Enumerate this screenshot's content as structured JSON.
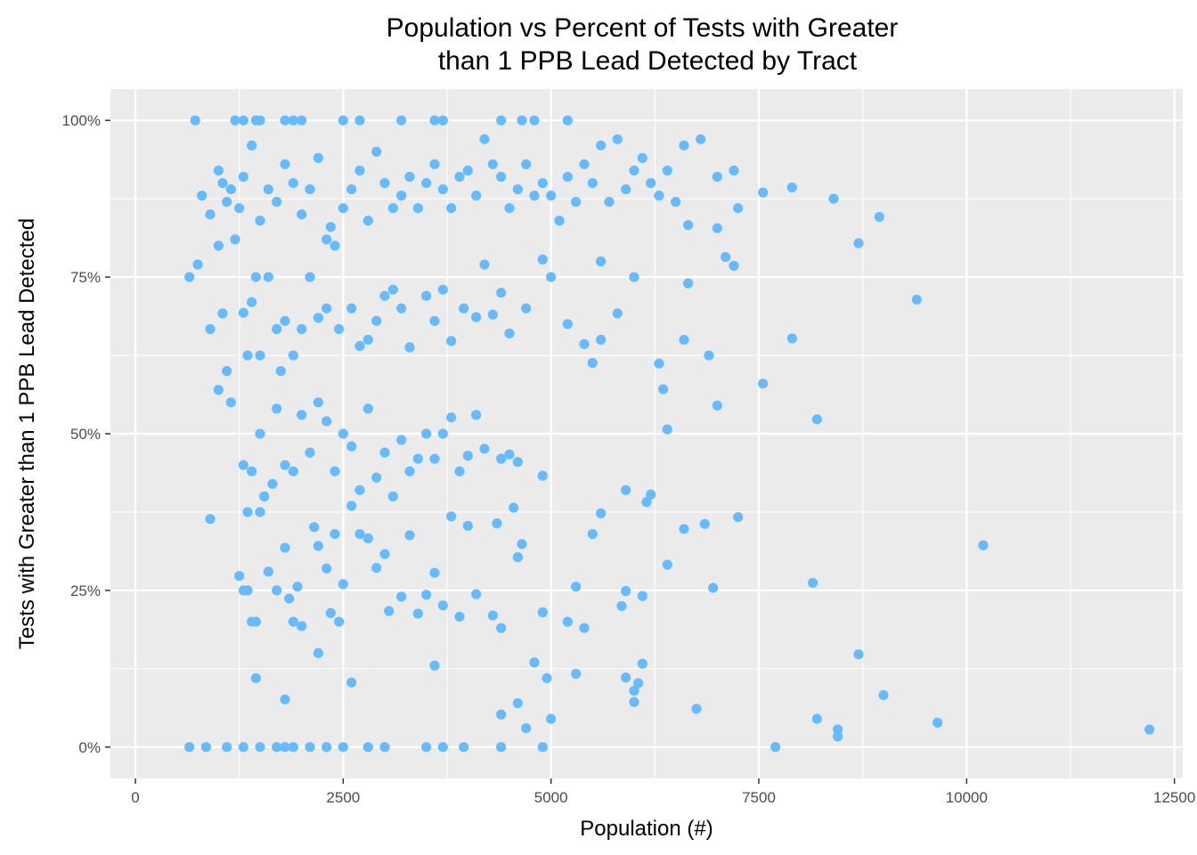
{
  "chart_data": {
    "type": "scatter",
    "title_lines": [
      "Population vs Percent of Tests with Greater",
      "than 1 PPB Lead Detected by Tract"
    ],
    "xlabel": "Population (#)",
    "ylabel": "Tests with Greater than 1 PPB Lead Detected",
    "xlim": [
      -300,
      12600
    ],
    "ylim": [
      -5,
      105
    ],
    "x_ticks": [
      0,
      2500,
      5000,
      7500,
      10000,
      12500
    ],
    "x_tick_labels": [
      "0",
      "2500",
      "5000",
      "7500",
      "10000",
      "12500"
    ],
    "y_ticks": [
      0,
      25,
      50,
      75,
      100
    ],
    "y_tick_labels": [
      "0%",
      "25%",
      "50%",
      "75%",
      "100%"
    ],
    "grid": true,
    "point_color": "#66bbff",
    "panel_color": "#ebebeb",
    "points": [
      [
        650,
        0
      ],
      [
        850,
        0
      ],
      [
        1100,
        0
      ],
      [
        1300,
        0
      ],
      [
        1500,
        0
      ],
      [
        1700,
        0
      ],
      [
        1800,
        0
      ],
      [
        1900,
        0
      ],
      [
        2100,
        0
      ],
      [
        2300,
        0
      ],
      [
        2500,
        0
      ],
      [
        2800,
        0
      ],
      [
        3000,
        0
      ],
      [
        3500,
        0
      ],
      [
        3700,
        0
      ],
      [
        3950,
        0
      ],
      [
        4400,
        0
      ],
      [
        4900,
        0
      ],
      [
        7700,
        0
      ],
      [
        720,
        100
      ],
      [
        1200,
        100
      ],
      [
        1300,
        100
      ],
      [
        1450,
        100
      ],
      [
        1500,
        100
      ],
      [
        1800,
        100
      ],
      [
        1900,
        100
      ],
      [
        2000,
        100
      ],
      [
        2500,
        100
      ],
      [
        2700,
        100
      ],
      [
        3200,
        100
      ],
      [
        3600,
        100
      ],
      [
        3700,
        100
      ],
      [
        4400,
        100
      ],
      [
        4650,
        100
      ],
      [
        4800,
        100
      ],
      [
        5200,
        100
      ],
      [
        650,
        75
      ],
      [
        750,
        77
      ],
      [
        900,
        66.7
      ],
      [
        1000,
        80
      ],
      [
        1050,
        69.2
      ],
      [
        1100,
        60
      ],
      [
        1200,
        81
      ],
      [
        1300,
        69.3
      ],
      [
        1350,
        62.5
      ],
      [
        1400,
        71
      ],
      [
        1450,
        75
      ],
      [
        1500,
        62.5
      ],
      [
        1600,
        75
      ],
      [
        1700,
        66.7
      ],
      [
        1750,
        60
      ],
      [
        1800,
        68
      ],
      [
        1900,
        62.5
      ],
      [
        2000,
        66.7
      ],
      [
        2100,
        75
      ],
      [
        2200,
        68.5
      ],
      [
        2300,
        70
      ],
      [
        2450,
        66.7
      ],
      [
        2600,
        70
      ],
      [
        2700,
        64
      ],
      [
        2800,
        65
      ],
      [
        2900,
        68
      ],
      [
        3000,
        72
      ],
      [
        3100,
        73
      ],
      [
        3200,
        70
      ],
      [
        3300,
        63.8
      ],
      [
        3500,
        72
      ],
      [
        3600,
        68
      ],
      [
        3700,
        73
      ],
      [
        3800,
        64.8
      ],
      [
        3950,
        70
      ],
      [
        4100,
        68.6
      ],
      [
        4300,
        69
      ],
      [
        4400,
        72.5
      ],
      [
        4500,
        66
      ],
      [
        4700,
        70
      ],
      [
        5000,
        75
      ],
      [
        5200,
        67.5
      ],
      [
        5400,
        64.3
      ],
      [
        5500,
        61.3
      ],
      [
        5600,
        65
      ],
      [
        5800,
        69.2
      ],
      [
        6000,
        75
      ],
      [
        6300,
        61.2
      ],
      [
        6600,
        65
      ],
      [
        6650,
        74
      ],
      [
        6900,
        62.5
      ],
      [
        7200,
        76.8
      ],
      [
        7900,
        65.2
      ],
      [
        9400,
        71.4
      ],
      [
        800,
        88
      ],
      [
        900,
        85
      ],
      [
        1000,
        92
      ],
      [
        1050,
        90
      ],
      [
        1100,
        87
      ],
      [
        1150,
        89
      ],
      [
        1250,
        86
      ],
      [
        1300,
        91
      ],
      [
        1400,
        96
      ],
      [
        1500,
        84
      ],
      [
        1600,
        89
      ],
      [
        1700,
        87
      ],
      [
        1800,
        93
      ],
      [
        1900,
        90
      ],
      [
        2000,
        85
      ],
      [
        2100,
        89
      ],
      [
        2200,
        94
      ],
      [
        2300,
        81
      ],
      [
        2350,
        83
      ],
      [
        2400,
        80
      ],
      [
        2500,
        86
      ],
      [
        2600,
        89
      ],
      [
        2700,
        92
      ],
      [
        2800,
        84
      ],
      [
        2900,
        95
      ],
      [
        3000,
        90
      ],
      [
        3100,
        86
      ],
      [
        3200,
        88
      ],
      [
        3300,
        91
      ],
      [
        3400,
        86
      ],
      [
        3500,
        90
      ],
      [
        3600,
        93
      ],
      [
        3700,
        89
      ],
      [
        3800,
        86
      ],
      [
        3900,
        91
      ],
      [
        4000,
        92
      ],
      [
        4100,
        88
      ],
      [
        4200,
        97
      ],
      [
        4300,
        93
      ],
      [
        4400,
        91
      ],
      [
        4500,
        86
      ],
      [
        4600,
        89
      ],
      [
        4700,
        93
      ],
      [
        4800,
        88
      ],
      [
        4900,
        90
      ],
      [
        5000,
        88
      ],
      [
        5100,
        84
      ],
      [
        5200,
        91
      ],
      [
        5300,
        87
      ],
      [
        5400,
        93
      ],
      [
        5500,
        90
      ],
      [
        5600,
        96
      ],
      [
        5700,
        87
      ],
      [
        5800,
        97
      ],
      [
        5900,
        89
      ],
      [
        6000,
        92
      ],
      [
        6100,
        94
      ],
      [
        6200,
        90
      ],
      [
        6300,
        88
      ],
      [
        6400,
        92
      ],
      [
        6500,
        87
      ],
      [
        6600,
        96
      ],
      [
        6800,
        97
      ],
      [
        7000,
        91
      ],
      [
        7200,
        92
      ],
      [
        7250,
        86
      ],
      [
        7550,
        88.5
      ],
      [
        7900,
        89.3
      ],
      [
        8400,
        87.5
      ],
      [
        8700,
        80.4
      ],
      [
        8950,
        84.6
      ],
      [
        6650,
        83.3
      ],
      [
        7000,
        82.8
      ],
      [
        7100,
        78.2
      ],
      [
        5600,
        77.5
      ],
      [
        4900,
        77.8
      ],
      [
        4200,
        77
      ],
      [
        1000,
        57
      ],
      [
        1150,
        55
      ],
      [
        1300,
        45
      ],
      [
        1350,
        37.5
      ],
      [
        1400,
        44
      ],
      [
        1500,
        50
      ],
      [
        1550,
        40
      ],
      [
        1650,
        42
      ],
      [
        1700,
        54
      ],
      [
        1800,
        45
      ],
      [
        1900,
        44
      ],
      [
        2000,
        53
      ],
      [
        2100,
        47
      ],
      [
        2200,
        55
      ],
      [
        2300,
        52
      ],
      [
        2400,
        44
      ],
      [
        2500,
        50
      ],
      [
        2600,
        48
      ],
      [
        2700,
        41
      ],
      [
        2800,
        54
      ],
      [
        2900,
        43
      ],
      [
        3000,
        47
      ],
      [
        3100,
        40
      ],
      [
        3200,
        49
      ],
      [
        3300,
        44
      ],
      [
        3400,
        46
      ],
      [
        3500,
        50
      ],
      [
        3600,
        46
      ],
      [
        3700,
        50
      ],
      [
        3800,
        52.6
      ],
      [
        3900,
        44
      ],
      [
        4000,
        46.5
      ],
      [
        4100,
        53
      ],
      [
        4200,
        47.6
      ],
      [
        4400,
        46
      ],
      [
        4500,
        46.7
      ],
      [
        4600,
        45.5
      ],
      [
        4900,
        43.3
      ],
      [
        5900,
        41
      ],
      [
        6150,
        39.1
      ],
      [
        6200,
        40.3
      ],
      [
        6350,
        57.1
      ],
      [
        6400,
        50.7
      ],
      [
        7000,
        54.5
      ],
      [
        7550,
        58
      ],
      [
        8200,
        52.3
      ],
      [
        900,
        36.4
      ],
      [
        1250,
        27.3
      ],
      [
        1300,
        25
      ],
      [
        1350,
        25
      ],
      [
        1400,
        20
      ],
      [
        1450,
        20
      ],
      [
        1500,
        37.5
      ],
      [
        1600,
        28
      ],
      [
        1700,
        25
      ],
      [
        1800,
        31.8
      ],
      [
        1850,
        23.7
      ],
      [
        1900,
        20
      ],
      [
        1950,
        25.6
      ],
      [
        2000,
        19.3
      ],
      [
        2150,
        35.1
      ],
      [
        2200,
        32.1
      ],
      [
        2300,
        28.5
      ],
      [
        2350,
        21.4
      ],
      [
        2400,
        34
      ],
      [
        2450,
        20
      ],
      [
        2500,
        26
      ],
      [
        2600,
        38.5
      ],
      [
        2700,
        34
      ],
      [
        2800,
        33.3
      ],
      [
        2900,
        28.6
      ],
      [
        3000,
        30.8
      ],
      [
        3050,
        21.7
      ],
      [
        3200,
        24
      ],
      [
        3300,
        33.8
      ],
      [
        3400,
        21.3
      ],
      [
        3500,
        24.3
      ],
      [
        3600,
        27.8
      ],
      [
        3700,
        22.6
      ],
      [
        3800,
        36.8
      ],
      [
        3900,
        20.8
      ],
      [
        4000,
        35.3
      ],
      [
        4100,
        24.4
      ],
      [
        4300,
        21
      ],
      [
        4350,
        35.7
      ],
      [
        4400,
        19
      ],
      [
        4550,
        38.2
      ],
      [
        4600,
        30.3
      ],
      [
        4650,
        32.4
      ],
      [
        4900,
        21.5
      ],
      [
        5200,
        20
      ],
      [
        5300,
        25.6
      ],
      [
        5400,
        19
      ],
      [
        5500,
        34
      ],
      [
        5600,
        37.3
      ],
      [
        5850,
        22.5
      ],
      [
        5900,
        24.9
      ],
      [
        6100,
        24.1
      ],
      [
        6400,
        29.1
      ],
      [
        6600,
        34.8
      ],
      [
        6850,
        35.6
      ],
      [
        6950,
        25.4
      ],
      [
        7250,
        36.7
      ],
      [
        8150,
        26.2
      ],
      [
        10200,
        32.2
      ],
      [
        1450,
        11
      ],
      [
        1800,
        7.6
      ],
      [
        2200,
        15
      ],
      [
        2600,
        10.3
      ],
      [
        3600,
        13
      ],
      [
        4400,
        5.2
      ],
      [
        4600,
        7
      ],
      [
        4700,
        3
      ],
      [
        4800,
        13.5
      ],
      [
        4950,
        11
      ],
      [
        5000,
        4.5
      ],
      [
        5300,
        11.7
      ],
      [
        5900,
        11.1
      ],
      [
        6000,
        9
      ],
      [
        6050,
        10.2
      ],
      [
        6100,
        13.3
      ],
      [
        6000,
        7.2
      ],
      [
        6750,
        6.1
      ],
      [
        8200,
        4.5
      ],
      [
        8450,
        2.8
      ],
      [
        8450,
        1.7
      ],
      [
        8700,
        14.8
      ],
      [
        9000,
        8.3
      ],
      [
        9650,
        3.9
      ],
      [
        12200,
        2.8
      ]
    ]
  }
}
